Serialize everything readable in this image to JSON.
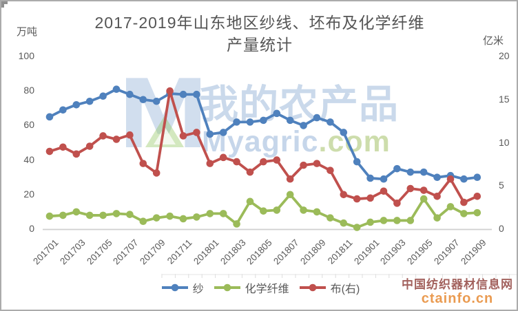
{
  "frame": {
    "title_lines": [
      "2017-2019年山东地区纱线、坯布及化学纤维",
      "产量统计"
    ],
    "left_unit_label": "万吨",
    "right_unit_label": "亿米"
  },
  "watermark_center": {
    "logo": "myagric-logo",
    "text": "我的农产品",
    "brand_blue": "Myagric",
    "brand_green": ".com",
    "blue": "#4F81BD",
    "green": "#9BBB59"
  },
  "watermark_corner": {
    "line1": "中国纺织器材信息网",
    "line2": "ctainfo.cn",
    "line1_color": "#8C3A35",
    "line2_color": "#E8913F"
  },
  "chart_data": {
    "type": "line",
    "title": "2017-2019年山东地区纱线、坯布及化学纤维产量统计",
    "grid": false,
    "legend_position": "bottom",
    "categories": [
      "201701",
      "201702",
      "201703",
      "201704",
      "201705",
      "201706",
      "201707",
      "201708",
      "201709",
      "201710",
      "201711",
      "201712",
      "201801",
      "201802",
      "201803",
      "201804",
      "201805",
      "201806",
      "201807",
      "201808",
      "201809",
      "201810",
      "201811",
      "201812",
      "201901",
      "201902",
      "201903",
      "201904",
      "201905",
      "201906",
      "201907",
      "201908",
      "201909"
    ],
    "x_tick_labels": [
      "201701",
      "201703",
      "201705",
      "201707",
      "201709",
      "201711",
      "201801",
      "201803",
      "201805",
      "201807",
      "201809",
      "201811",
      "201901",
      "201903",
      "201905",
      "201907",
      "201909"
    ],
    "left_axis": {
      "unit": "万吨",
      "range": [
        0,
        100
      ],
      "ticks": [
        0,
        20,
        40,
        60,
        80,
        100
      ]
    },
    "right_axis": {
      "unit": "亿米",
      "range": [
        0,
        20
      ],
      "ticks": [
        0,
        5,
        10,
        15,
        20
      ]
    },
    "series": [
      {
        "name": "纱",
        "key": "yarn",
        "axis": "left",
        "color": "#4F81BD",
        "values": [
          65,
          69,
          72,
          74,
          77,
          81,
          78,
          75,
          74,
          78.5,
          78,
          78,
          55,
          56,
          62,
          62,
          63,
          67,
          63,
          60,
          64.5,
          62,
          56,
          39,
          29.5,
          29,
          35,
          33,
          33,
          30,
          31,
          29,
          30
        ]
      },
      {
        "name": "化学纤维",
        "key": "chemical-fiber",
        "axis": "left",
        "color": "#9BBB59",
        "values": [
          7.5,
          8,
          10,
          8,
          8,
          9,
          8.5,
          4.5,
          6.5,
          7.5,
          6,
          7,
          9,
          9,
          3,
          16,
          10.5,
          11,
          20,
          11,
          10,
          6.5,
          3.5,
          1,
          4,
          5,
          5,
          5,
          17.5,
          6.5,
          13,
          9,
          9.5
        ]
      },
      {
        "name": "布(右)",
        "key": "fabric",
        "axis": "right",
        "color": "#C0504D",
        "values": [
          9,
          9.5,
          8.7,
          9.6,
          10.8,
          10.4,
          10.9,
          7.6,
          6.5,
          16,
          10.8,
          11.2,
          7.6,
          8.3,
          7.8,
          6.6,
          7.8,
          8,
          5.8,
          7.4,
          7.6,
          6.8,
          4,
          3.5,
          3.6,
          4.4,
          3,
          4.7,
          4.5,
          3.8,
          5.8,
          3.1,
          3.8
        ]
      }
    ]
  }
}
